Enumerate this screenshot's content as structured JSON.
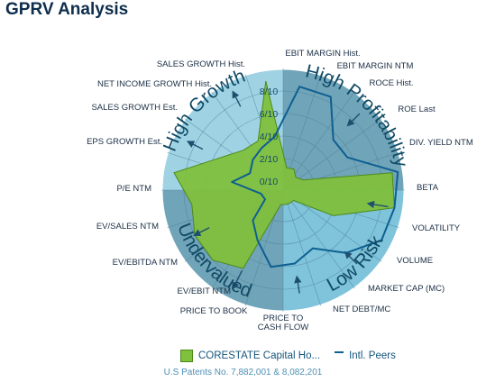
{
  "title": "GPRV Analysis",
  "chart_data": {
    "type": "radar",
    "scale_max": 10,
    "tick_labels": [
      "0/10",
      "2/10",
      "4/10",
      "6/10",
      "8/10"
    ],
    "sectors": [
      "High Profitability",
      "Low Risk",
      "Undervalued",
      "High Growth"
    ],
    "axes": [
      "EBIT MARGIN Hist.",
      "EBIT MARGIN NTM",
      "ROCE Hist.",
      "ROE  Last",
      "DIV. YIELD NTM",
      "BETA",
      "VOLATILITY",
      "VOLUME",
      "MARKET CAP (MC)",
      "NET DEBT/MC",
      "PRICE TO CASH FLOW",
      "PRICE TO BOOK",
      "EV/EBIT NTM",
      "EV/EBITDA NTM",
      "EV/SALES NTM",
      "P/E NTM",
      "EPS GROWTH Est.",
      "SALES GROWTH Est.",
      "NET INCOME GROWTH Hist.",
      "SALES GROWTH Hist."
    ],
    "series": [
      {
        "name": "CORESTATE Capital Ho...",
        "color": "#7fc03c",
        "values": [
          1.2,
          1.3,
          0.8,
          1.2,
          9.0,
          9.2,
          4.2,
          0.5,
          0.5,
          0.5,
          0.5,
          7.0,
          8.0,
          8.0,
          7.4,
          9.0,
          5.5,
          4.2,
          4.1,
          9.0
        ]
      },
      {
        "name": "Intl. Peers",
        "color": "#0e5f92",
        "values": [
          8.5,
          8.5,
          5.5,
          5.6,
          9.5,
          9.2,
          9.0,
          7.1,
          5.0,
          5.8,
          6.1,
          4.2,
          3.0,
          1.0,
          1.2,
          3.8,
          2.5,
          3.0,
          3.4,
          4.0
        ]
      }
    ]
  },
  "legend": {
    "series_a": "CORESTATE Capital Ho...",
    "series_b": "Intl. Peers"
  },
  "footer": "U.S Patents No. 7,882,001 & 8,082,201"
}
